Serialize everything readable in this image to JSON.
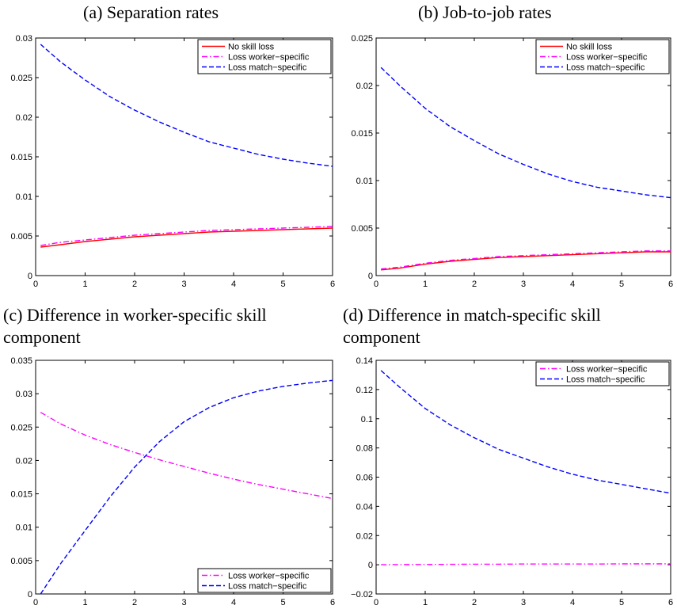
{
  "chart_data": [
    {
      "type": "line",
      "title": "(a) Separation rates",
      "xlim": [
        0,
        6
      ],
      "ylim": [
        0,
        0.03
      ],
      "xticks": [
        "0",
        "1",
        "2",
        "3",
        "4",
        "5",
        "6"
      ],
      "yticks": [
        "0",
        "0.005",
        "0.01",
        "0.015",
        "0.02",
        "0.025",
        "0.03"
      ],
      "xlabel": "",
      "ylabel": "",
      "legend_position": "top-right",
      "x": [
        0.1,
        0.5,
        1,
        1.5,
        2,
        2.5,
        3,
        3.5,
        4,
        4.5,
        5,
        5.5,
        6
      ],
      "series": [
        {
          "name": "No skill loss",
          "color": "#ff0000",
          "style": "solid",
          "values": [
            0.0036,
            0.0039,
            0.0043,
            0.0046,
            0.0049,
            0.0051,
            0.0053,
            0.0055,
            0.0056,
            0.0057,
            0.0058,
            0.0059,
            0.006
          ]
        },
        {
          "name": "Loss worker−specific",
          "color": "#ff00ff",
          "style": "dashdot",
          "values": [
            0.0038,
            0.0042,
            0.0045,
            0.0048,
            0.0051,
            0.0053,
            0.0055,
            0.0057,
            0.0058,
            0.0059,
            0.006,
            0.0061,
            0.0062
          ]
        },
        {
          "name": "Loss match−specific",
          "color": "#0000ff",
          "style": "dashed",
          "values": [
            0.0292,
            0.027,
            0.0247,
            0.0226,
            0.0209,
            0.0194,
            0.0181,
            0.0169,
            0.0161,
            0.0153,
            0.0147,
            0.0142,
            0.0138
          ]
        }
      ]
    },
    {
      "type": "line",
      "title": "(b) Job-to-job rates",
      "xlim": [
        0,
        6
      ],
      "ylim": [
        0,
        0.025
      ],
      "xticks": [
        "0",
        "1",
        "2",
        "3",
        "4",
        "5",
        "6"
      ],
      "yticks": [
        "0",
        "0.005",
        "0.01",
        "0.015",
        "0.02",
        "0.025"
      ],
      "xlabel": "",
      "ylabel": "",
      "legend_position": "top-right",
      "x": [
        0.1,
        0.5,
        1,
        1.5,
        2,
        2.5,
        3,
        3.5,
        4,
        4.5,
        5,
        5.5,
        6
      ],
      "series": [
        {
          "name": "No skill loss",
          "color": "#ff0000",
          "style": "solid",
          "values": [
            0.0006,
            0.0008,
            0.0012,
            0.0015,
            0.0017,
            0.0019,
            0.002,
            0.0021,
            0.0022,
            0.0023,
            0.0024,
            0.0025,
            0.0025
          ]
        },
        {
          "name": "Loss worker−specific",
          "color": "#ff00ff",
          "style": "dashdot",
          "values": [
            0.0007,
            0.0009,
            0.0013,
            0.0016,
            0.0018,
            0.002,
            0.0021,
            0.0022,
            0.0023,
            0.0024,
            0.0025,
            0.0026,
            0.0026
          ]
        },
        {
          "name": "Loss match−specific",
          "color": "#0000ff",
          "style": "dashed",
          "values": [
            0.0219,
            0.0199,
            0.0176,
            0.0157,
            0.0142,
            0.0128,
            0.0117,
            0.0107,
            0.0099,
            0.0093,
            0.0089,
            0.0085,
            0.0082
          ]
        }
      ]
    },
    {
      "type": "line",
      "title": "(c) Difference in worker-specific skill component",
      "title_lines": [
        "(c) Difference in worker-specific skill",
        "component"
      ],
      "xlim": [
        0,
        6
      ],
      "ylim": [
        0,
        0.035
      ],
      "xticks": [
        "0",
        "1",
        "2",
        "3",
        "4",
        "5",
        "6"
      ],
      "yticks": [
        "0",
        "0.005",
        "0.01",
        "0.015",
        "0.02",
        "0.025",
        "0.03",
        "0.035"
      ],
      "xlabel": "",
      "ylabel": "",
      "legend_position": "bottom-right",
      "x": [
        0.1,
        0.5,
        1,
        1.5,
        2,
        2.5,
        3,
        3.5,
        4,
        4.5,
        5,
        5.5,
        6
      ],
      "series": [
        {
          "name": "Loss worker−specific",
          "color": "#ff00ff",
          "style": "dashdot",
          "values": [
            0.0272,
            0.0255,
            0.0238,
            0.0224,
            0.0212,
            0.0201,
            0.0191,
            0.0181,
            0.0172,
            0.0164,
            0.0157,
            0.015,
            0.0143
          ]
        },
        {
          "name": "Loss match−specific",
          "color": "#0000ff",
          "style": "dashed",
          "values": [
            0.0,
            0.0045,
            0.0095,
            0.0145,
            0.019,
            0.0228,
            0.0258,
            0.0279,
            0.0294,
            0.0304,
            0.0311,
            0.0316,
            0.032
          ]
        }
      ]
    },
    {
      "type": "line",
      "title": "(d) Difference in match-specific skill component",
      "title_lines": [
        "(d) Difference in match-specific skill",
        "component"
      ],
      "xlim": [
        0,
        6
      ],
      "ylim": [
        -0.02,
        0.14
      ],
      "xticks": [
        "0",
        "1",
        "2",
        "3",
        "4",
        "5",
        "6"
      ],
      "yticks": [
        "−0.02",
        "0",
        "0.02",
        "0.04",
        "0.06",
        "0.08",
        "0.1",
        "0.12",
        "0.14"
      ],
      "xlabel": "",
      "ylabel": "",
      "legend_position": "top-right",
      "x": [
        0.1,
        0.5,
        1,
        1.5,
        2,
        2.5,
        3,
        3.5,
        4,
        4.5,
        5,
        5.5,
        6
      ],
      "series": [
        {
          "name": "Loss worker−specific",
          "color": "#ff00ff",
          "style": "dashdot",
          "values": [
            0.0,
            0.0001,
            0.0002,
            0.0003,
            0.0004,
            0.0004,
            0.0005,
            0.0005,
            0.0005,
            0.0005,
            0.0006,
            0.0006,
            0.0006
          ]
        },
        {
          "name": "Loss match−specific",
          "color": "#0000ff",
          "style": "dashed",
          "values": [
            0.133,
            0.121,
            0.107,
            0.096,
            0.087,
            0.079,
            0.073,
            0.067,
            0.062,
            0.058,
            0.055,
            0.052,
            0.049
          ]
        }
      ]
    }
  ]
}
